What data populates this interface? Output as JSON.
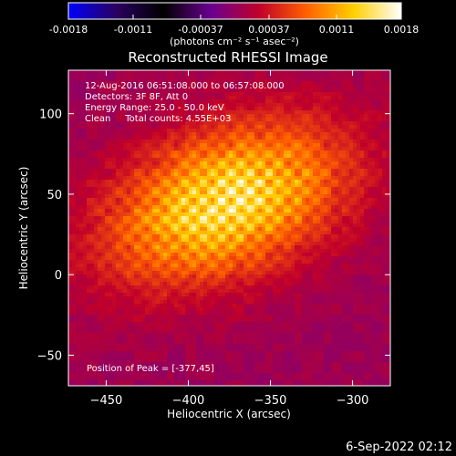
{
  "chart_data": {
    "type": "heatmap",
    "title": "Reconstructed RHESSI Image",
    "xlabel": "Heliocentric X (arcsec)",
    "ylabel": "Heliocentric Y (arcsec)",
    "xlim": [
      -473,
      -277
    ],
    "ylim": [
      -69,
      127
    ],
    "xticks": [
      -450,
      -400,
      -350,
      -300
    ],
    "yticks": [
      -50,
      0,
      50,
      100
    ],
    "colorbar": {
      "title": "(photons cm⁻² s⁻¹ asec⁻²)",
      "range": [
        -0.0018,
        0.0018
      ],
      "ticks": [
        -0.0018,
        -0.0011,
        -0.00037,
        0.00037,
        0.0011,
        0.0018
      ],
      "tick_labels": [
        "-0.0018",
        "-0.0011",
        "-0.00037",
        "0.00037",
        "0.0011",
        "0.0018"
      ],
      "stops": [
        "#0000ff",
        "#2a0060",
        "#000000",
        "#6a0090",
        "#c0002a",
        "#ff6000",
        "#ffd000",
        "#ffffff"
      ]
    },
    "info_lines": [
      "12-Aug-2016 06:51:08.000 to 06:57:08.000",
      "Detectors: 3F 8F, Att 0",
      "Energy Range: 25.0 - 50.0 keV",
      "Clean     Total counts: 4.55E+03"
    ],
    "peak_label": "Position of Peak = [-377,45]",
    "peak": {
      "x": -377,
      "y": 45
    },
    "source": {
      "peak_value": 0.0018,
      "center_x": -377,
      "center_y": 45,
      "sigma_major": 52,
      "sigma_minor": 30,
      "tilt_deg": -22,
      "ripple_period": 11.5,
      "background": 5e-05
    },
    "date_stamp": "6-Sep-2022 02:12"
  }
}
